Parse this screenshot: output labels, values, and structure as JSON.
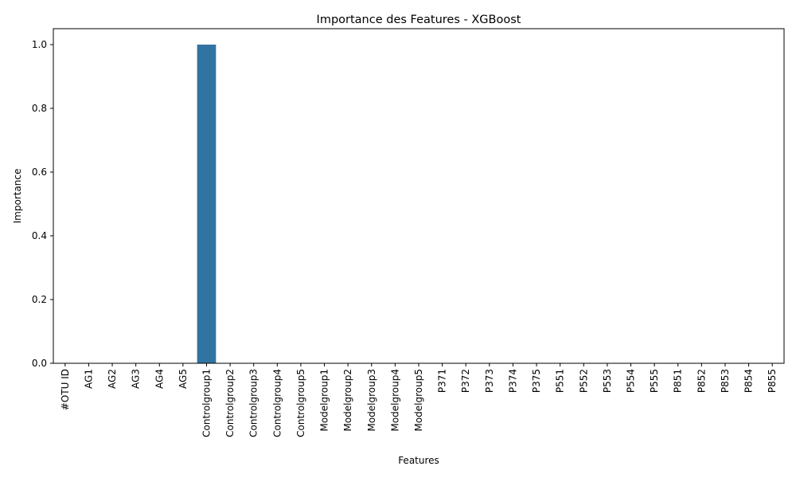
{
  "chart_data": {
    "type": "bar",
    "title": "Importance des Features - XGBoost",
    "xlabel": "Features",
    "ylabel": "Importance",
    "categories": [
      "#OTU ID",
      "AG1",
      "AG2",
      "AG3",
      "AG4",
      "AG5",
      "Controlgroup1",
      "Controlgroup2",
      "Controlgroup3",
      "Controlgroup4",
      "Controlgroup5",
      "Modelgroup1",
      "Modelgroup2",
      "Modelgroup3",
      "Modelgroup4",
      "Modelgroup5",
      "P371",
      "P372",
      "P373",
      "P374",
      "P375",
      "P551",
      "P552",
      "P553",
      "P554",
      "P555",
      "P851",
      "P852",
      "P853",
      "P854",
      "P855"
    ],
    "values": [
      0,
      0,
      0,
      0,
      0,
      0,
      1.0,
      0,
      0,
      0,
      0,
      0,
      0,
      0,
      0,
      0,
      0,
      0,
      0,
      0,
      0,
      0,
      0,
      0,
      0,
      0,
      0,
      0,
      0,
      0,
      0
    ],
    "ylim": [
      0,
      1.05
    ],
    "yticks": [
      0.0,
      0.2,
      0.4,
      0.6,
      0.8,
      1.0
    ],
    "ytick_labels": [
      "0.0",
      "0.2",
      "0.4",
      "0.6",
      "0.8",
      "1.0"
    ],
    "bar_color": "#3274a1",
    "grid": false,
    "legend": "none"
  }
}
